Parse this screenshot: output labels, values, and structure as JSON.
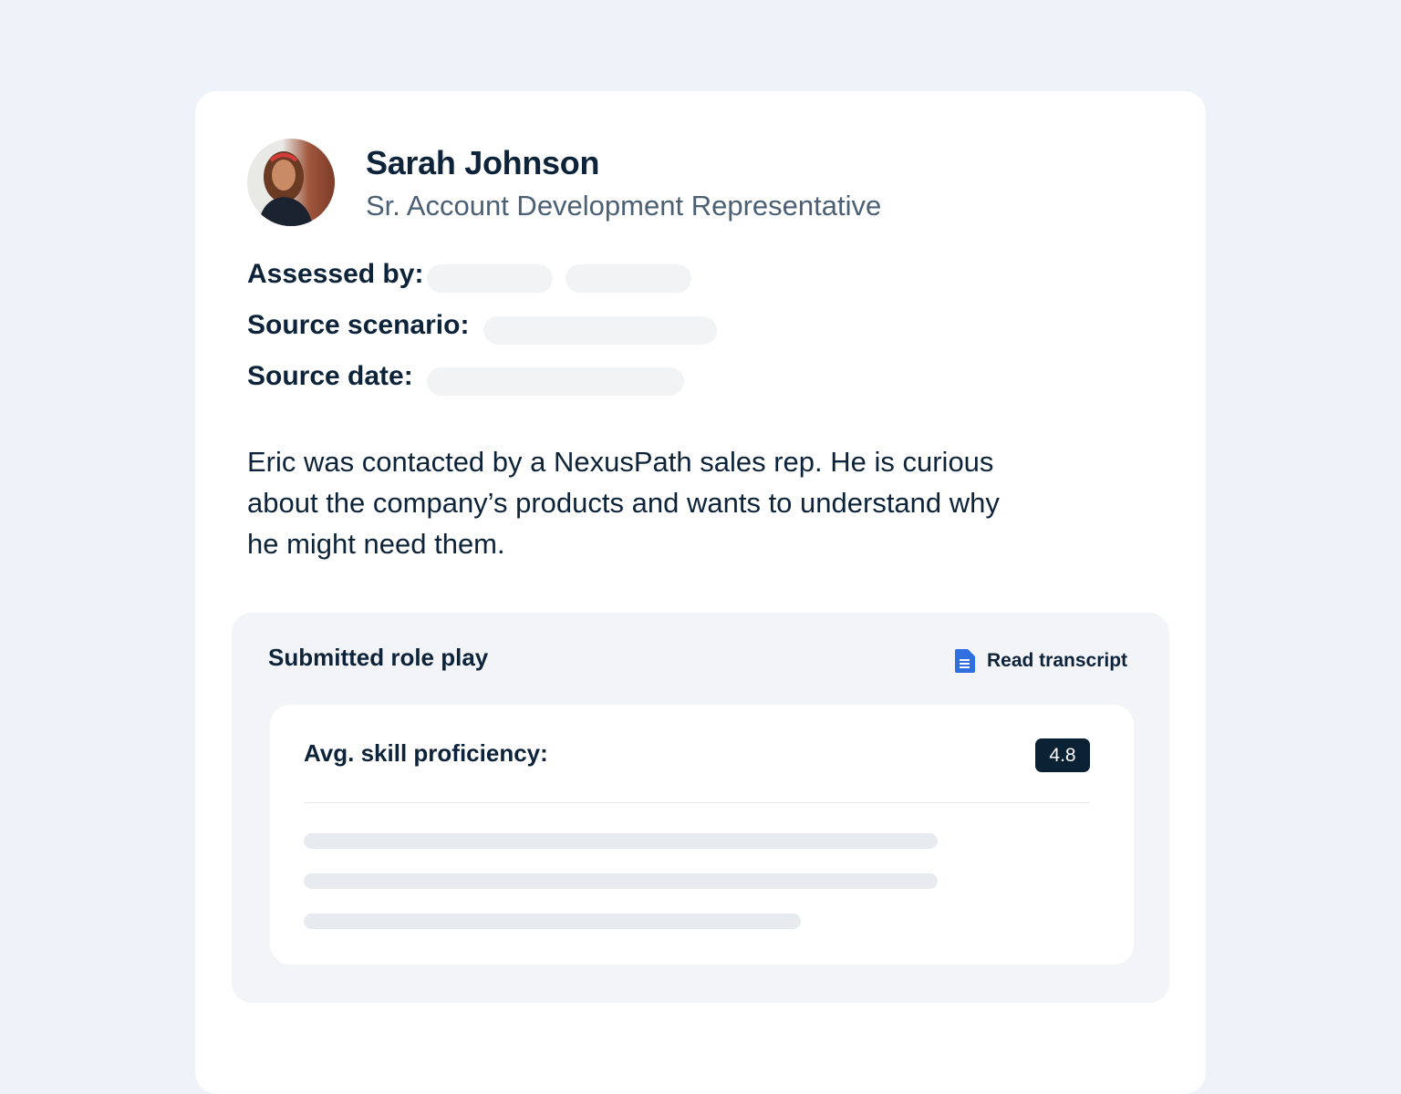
{
  "profile": {
    "name": "Sarah Johnson",
    "role": "Sr. Account Development Representative",
    "avatar": "person-photo"
  },
  "meta": {
    "assessed_by_label": "Assessed by:",
    "source_scenario_label": "Source scenario:",
    "source_date_label": "Source date:"
  },
  "description": "Eric was contacted by a NexusPath sales rep. He is curious about the company’s products and wants to understand why he might need them.",
  "panel": {
    "title": "Submitted role play",
    "read_transcript": "Read transcript",
    "transcript_icon": "document-icon",
    "avg_label": "Avg. skill proficiency:",
    "avg_value": "4.8"
  },
  "colors": {
    "accent": "#2f6fe0",
    "badge": "#0b2235",
    "background": "#eef3fa"
  }
}
